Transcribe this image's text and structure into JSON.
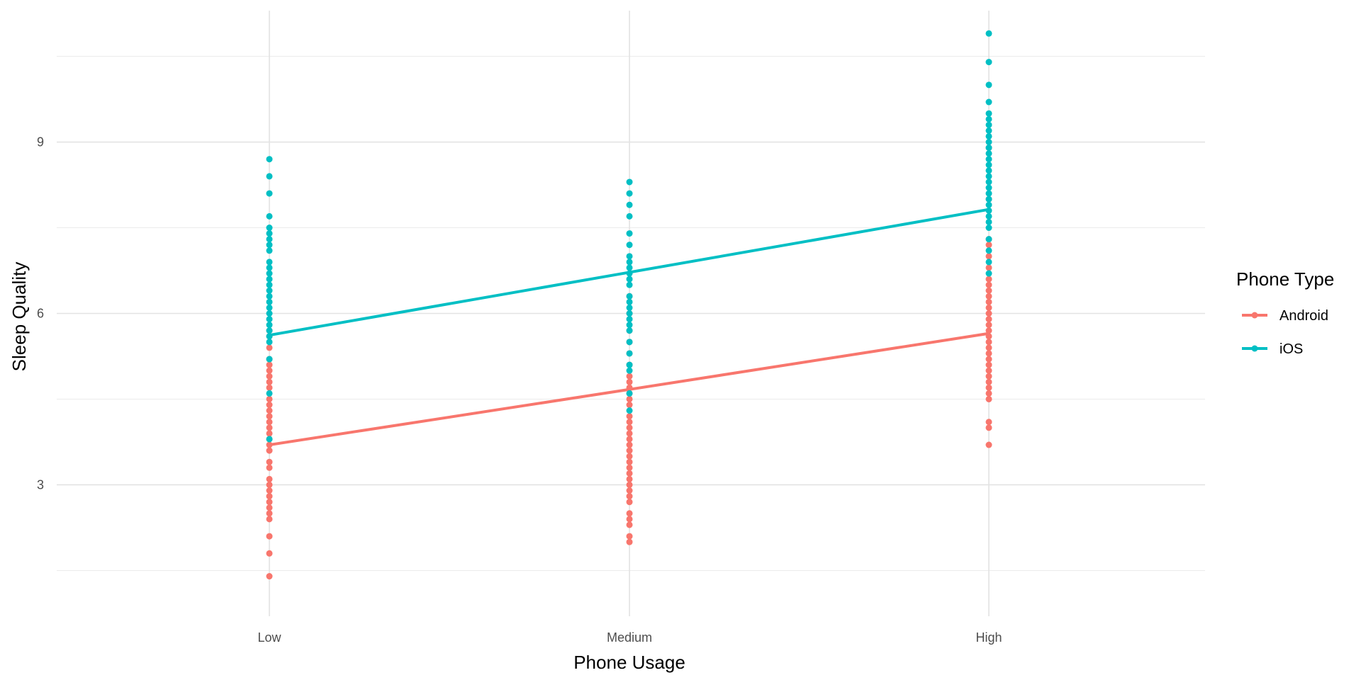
{
  "chart_data": {
    "type": "scatter",
    "xlabel": "Phone Usage",
    "ylabel": "Sleep Quality",
    "categories": [
      "Low",
      "Medium",
      "High"
    ],
    "ylim": [
      0.7,
      11.3
    ],
    "y_ticks": [
      3,
      6,
      9
    ],
    "y_tick_labels": [
      "3",
      "6",
      "9"
    ],
    "grid": true,
    "legend": {
      "title": "Phone Type",
      "position": "right"
    },
    "colors": {
      "Android": "#F8766D",
      "iOS": "#00BFC4"
    },
    "series": [
      {
        "name": "Android",
        "color": "#F8766D",
        "points": {
          "Low": [
            1.4,
            1.8,
            2.1,
            2.4,
            2.5,
            2.6,
            2.7,
            2.8,
            2.9,
            3.0,
            3.1,
            3.3,
            3.4,
            3.6,
            3.7,
            3.8,
            3.9,
            4.0,
            4.1,
            4.2,
            4.3,
            4.4,
            4.5,
            4.7,
            4.8,
            4.9,
            5.0,
            5.1,
            5.2,
            5.4,
            5.6,
            5.7
          ],
          "Medium": [
            2.0,
            2.1,
            2.3,
            2.4,
            2.5,
            2.7,
            2.8,
            2.9,
            3.0,
            3.1,
            3.2,
            3.3,
            3.4,
            3.5,
            3.6,
            3.7,
            3.8,
            3.9,
            4.0,
            4.1,
            4.2,
            4.4,
            4.5,
            4.6,
            4.7,
            4.8,
            4.9,
            5.1,
            5.3,
            5.5,
            5.7,
            6.0,
            6.3
          ],
          "High": [
            3.7,
            4.0,
            4.1,
            4.5,
            4.6,
            4.7,
            4.8,
            4.9,
            5.0,
            5.1,
            5.2,
            5.3,
            5.4,
            5.5,
            5.6,
            5.7,
            5.8,
            5.9,
            6.0,
            6.1,
            6.2,
            6.3,
            6.4,
            6.5,
            6.6,
            6.8,
            7.0,
            7.2,
            7.3,
            8.0,
            8.9
          ]
        },
        "trend": [
          3.7,
          4.67,
          5.65
        ]
      },
      {
        "name": "iOS",
        "color": "#00BFC4",
        "points": {
          "Low": [
            3.8,
            4.6,
            5.2,
            5.5,
            5.6,
            5.7,
            5.8,
            5.9,
            6.0,
            6.1,
            6.2,
            6.3,
            6.4,
            6.5,
            6.6,
            6.7,
            6.8,
            6.9,
            7.1,
            7.2,
            7.3,
            7.4,
            7.5,
            7.7,
            8.1,
            8.4,
            8.7
          ],
          "Medium": [
            4.3,
            4.6,
            5.0,
            5.1,
            5.3,
            5.5,
            5.7,
            5.8,
            5.9,
            6.0,
            6.1,
            6.2,
            6.3,
            6.5,
            6.6,
            6.7,
            6.8,
            6.9,
            7.0,
            7.2,
            7.4,
            7.7,
            7.9,
            8.1,
            8.3
          ],
          "High": [
            6.7,
            6.9,
            7.1,
            7.3,
            7.5,
            7.6,
            7.7,
            7.8,
            7.9,
            8.0,
            8.1,
            8.2,
            8.3,
            8.4,
            8.5,
            8.6,
            8.7,
            8.8,
            8.9,
            9.0,
            9.1,
            9.2,
            9.3,
            9.4,
            9.5,
            9.7,
            10.0,
            10.4,
            10.9
          ]
        },
        "trend": [
          5.62,
          6.72,
          7.82
        ]
      }
    ]
  }
}
